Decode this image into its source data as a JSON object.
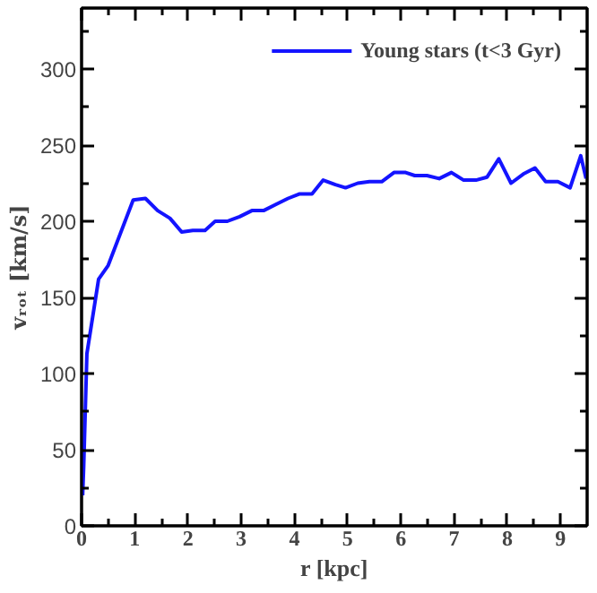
{
  "chart_data": {
    "type": "line",
    "xlabel": "r [kpc]",
    "ylabel": "vᵣₒₜ [km/s]",
    "x": [
      0.02,
      0.04,
      0.1,
      0.32,
      0.5,
      0.97,
      1.2,
      1.43,
      1.66,
      1.88,
      2.09,
      2.32,
      2.51,
      2.74,
      2.97,
      3.2,
      3.42,
      3.65,
      3.88,
      4.1,
      4.33,
      4.54,
      4.77,
      4.96,
      5.19,
      5.41,
      5.64,
      5.87,
      6.09,
      6.26,
      6.49,
      6.72,
      6.95,
      7.18,
      7.41,
      7.62,
      7.84,
      8.07,
      8.3,
      8.52,
      8.72,
      8.95,
      9.18,
      9.38,
      9.48
    ],
    "series": [
      {
        "name": "Young stars (t<3 Gyr)",
        "color": "#1414ff",
        "values": [
          20,
          39,
          113,
          162,
          171,
          214,
          215,
          207,
          202,
          193,
          194,
          194,
          200,
          200,
          203,
          207,
          207,
          211,
          215,
          218,
          218,
          227,
          224,
          222,
          225,
          226,
          226,
          232,
          232,
          230,
          230,
          228,
          232,
          227,
          227,
          229,
          241,
          225,
          231,
          235,
          226,
          226,
          222,
          243,
          228
        ]
      }
    ],
    "xlim": [
      0,
      9.5
    ],
    "ylim": [
      0,
      340
    ],
    "xticks": [
      0,
      {
        "value": 0.5,
        "label": null
      },
      1,
      {
        "value": 1.5,
        "label": null
      },
      2,
      {
        "value": 2.5,
        "label": null
      },
      3,
      {
        "value": 3.5,
        "label": null
      },
      4,
      {
        "value": 4.5,
        "label": null
      },
      5,
      {
        "value": 5.5,
        "label": null
      },
      6,
      {
        "value": 6.5,
        "label": null
      },
      7,
      {
        "value": 7.5,
        "label": null
      },
      8,
      {
        "value": 8.5,
        "label": null
      },
      9
    ],
    "yticks": [
      0,
      {
        "value": 25,
        "label": null
      },
      50,
      {
        "value": 75,
        "label": null
      },
      100,
      {
        "value": 125,
        "label": null
      },
      150,
      {
        "value": 175,
        "label": null
      },
      200,
      {
        "value": 225,
        "label": null
      },
      250,
      {
        "value": 275,
        "label": null
      },
      300,
      {
        "value": 325,
        "label": null
      }
    ],
    "legend": "top right",
    "grid": false
  }
}
